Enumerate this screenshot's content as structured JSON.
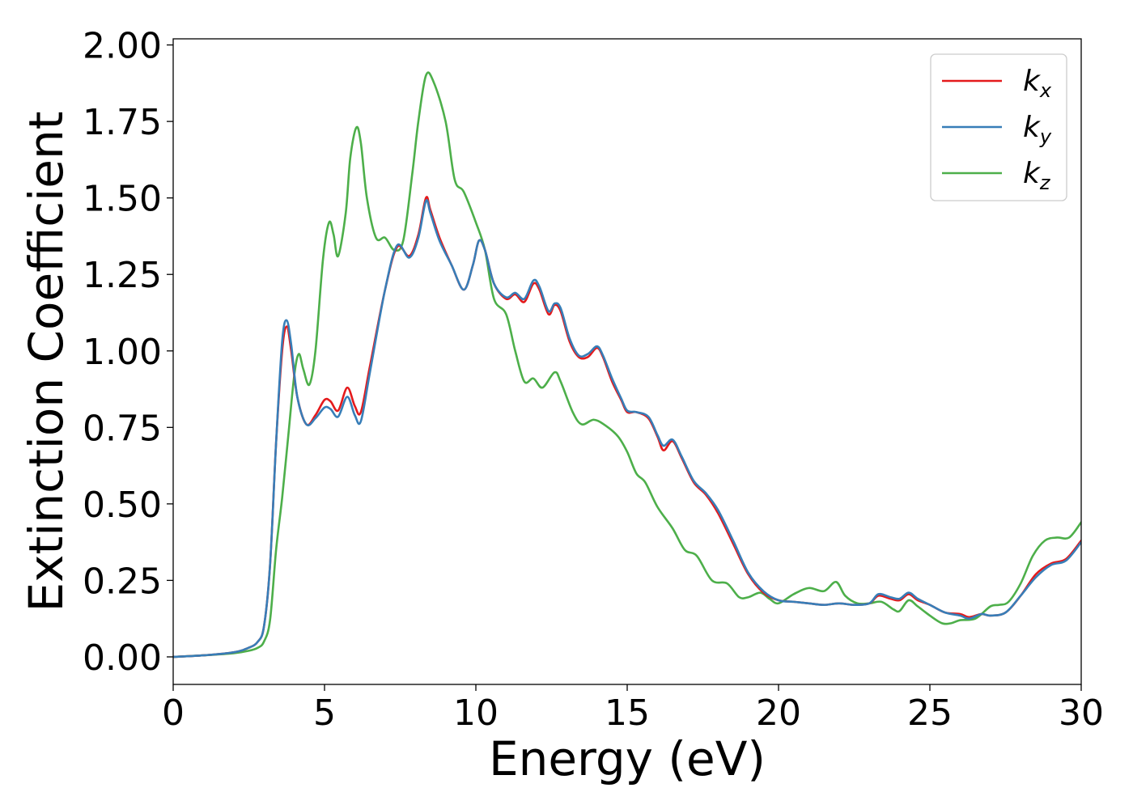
{
  "chart_data": {
    "type": "line",
    "xlabel": "Energy (eV)",
    "ylabel": "Extinction Coefficient",
    "xlim": [
      0,
      30
    ],
    "ylim": [
      -0.09,
      2.02
    ],
    "xticks": [
      0,
      5,
      10,
      15,
      20,
      25,
      30
    ],
    "xtick_labels": [
      "0",
      "5",
      "10",
      "15",
      "20",
      "25",
      "30"
    ],
    "yticks": [
      0.0,
      0.25,
      0.5,
      0.75,
      1.0,
      1.25,
      1.5,
      1.75,
      2.0
    ],
    "ytick_labels": [
      "0.00",
      "0.25",
      "0.50",
      "0.75",
      "1.00",
      "1.25",
      "1.50",
      "1.75",
      "2.00"
    ],
    "grid": false,
    "legend_position": "top-right",
    "series": [
      {
        "name": "k",
        "subscript": "x",
        "color": "#e41a1c",
        "points": [
          [
            0,
            0.0
          ],
          [
            1,
            0.005
          ],
          [
            2,
            0.015
          ],
          [
            2.5,
            0.03
          ],
          [
            2.8,
            0.05
          ],
          [
            3.0,
            0.1
          ],
          [
            3.2,
            0.3
          ],
          [
            3.4,
            0.7
          ],
          [
            3.6,
            1.0
          ],
          [
            3.75,
            1.08
          ],
          [
            3.9,
            1.0
          ],
          [
            4.1,
            0.85
          ],
          [
            4.4,
            0.76
          ],
          [
            4.7,
            0.79
          ],
          [
            5.0,
            0.84
          ],
          [
            5.2,
            0.835
          ],
          [
            5.45,
            0.805
          ],
          [
            5.75,
            0.88
          ],
          [
            6.0,
            0.82
          ],
          [
            6.2,
            0.8
          ],
          [
            6.5,
            0.95
          ],
          [
            7.0,
            1.2
          ],
          [
            7.4,
            1.34
          ],
          [
            7.8,
            1.31
          ],
          [
            8.1,
            1.38
          ],
          [
            8.35,
            1.5
          ],
          [
            8.5,
            1.46
          ],
          [
            8.8,
            1.37
          ],
          [
            9.2,
            1.28
          ],
          [
            9.6,
            1.2
          ],
          [
            9.9,
            1.28
          ],
          [
            10.1,
            1.36
          ],
          [
            10.3,
            1.33
          ],
          [
            10.6,
            1.22
          ],
          [
            11.0,
            1.17
          ],
          [
            11.3,
            1.185
          ],
          [
            11.6,
            1.16
          ],
          [
            11.9,
            1.22
          ],
          [
            12.1,
            1.2
          ],
          [
            12.4,
            1.12
          ],
          [
            12.6,
            1.15
          ],
          [
            12.8,
            1.13
          ],
          [
            13.1,
            1.03
          ],
          [
            13.4,
            0.98
          ],
          [
            13.7,
            0.98
          ],
          [
            14.0,
            1.01
          ],
          [
            14.2,
            0.98
          ],
          [
            14.5,
            0.9
          ],
          [
            14.8,
            0.84
          ],
          [
            15.0,
            0.8
          ],
          [
            15.3,
            0.8
          ],
          [
            15.7,
            0.78
          ],
          [
            16.0,
            0.72
          ],
          [
            16.2,
            0.675
          ],
          [
            16.5,
            0.705
          ],
          [
            16.8,
            0.65
          ],
          [
            17.2,
            0.57
          ],
          [
            17.6,
            0.53
          ],
          [
            18.0,
            0.47
          ],
          [
            18.5,
            0.37
          ],
          [
            19.0,
            0.27
          ],
          [
            19.5,
            0.21
          ],
          [
            20.0,
            0.185
          ],
          [
            20.5,
            0.18
          ],
          [
            21.0,
            0.175
          ],
          [
            21.5,
            0.17
          ],
          [
            22.0,
            0.175
          ],
          [
            22.5,
            0.17
          ],
          [
            23.0,
            0.175
          ],
          [
            23.3,
            0.2
          ],
          [
            23.7,
            0.19
          ],
          [
            24.0,
            0.185
          ],
          [
            24.3,
            0.205
          ],
          [
            24.6,
            0.185
          ],
          [
            25.0,
            0.17
          ],
          [
            25.5,
            0.145
          ],
          [
            26.0,
            0.14
          ],
          [
            26.3,
            0.13
          ],
          [
            26.7,
            0.14
          ],
          [
            27.0,
            0.135
          ],
          [
            27.5,
            0.145
          ],
          [
            28.0,
            0.2
          ],
          [
            28.5,
            0.27
          ],
          [
            29.0,
            0.305
          ],
          [
            29.5,
            0.32
          ],
          [
            30.0,
            0.38
          ]
        ]
      },
      {
        "name": "k",
        "subscript": "y",
        "color": "#377eb8",
        "points": [
          [
            0,
            0.0
          ],
          [
            1,
            0.005
          ],
          [
            2,
            0.015
          ],
          [
            2.5,
            0.03
          ],
          [
            2.8,
            0.05
          ],
          [
            3.0,
            0.1
          ],
          [
            3.2,
            0.3
          ],
          [
            3.4,
            0.7
          ],
          [
            3.6,
            1.03
          ],
          [
            3.75,
            1.1
          ],
          [
            3.9,
            1.02
          ],
          [
            4.1,
            0.85
          ],
          [
            4.4,
            0.76
          ],
          [
            4.7,
            0.78
          ],
          [
            5.0,
            0.815
          ],
          [
            5.2,
            0.81
          ],
          [
            5.45,
            0.785
          ],
          [
            5.75,
            0.85
          ],
          [
            6.0,
            0.79
          ],
          [
            6.2,
            0.77
          ],
          [
            6.5,
            0.93
          ],
          [
            7.0,
            1.2
          ],
          [
            7.4,
            1.345
          ],
          [
            7.8,
            1.305
          ],
          [
            8.1,
            1.37
          ],
          [
            8.35,
            1.49
          ],
          [
            8.5,
            1.45
          ],
          [
            8.8,
            1.36
          ],
          [
            9.2,
            1.28
          ],
          [
            9.6,
            1.2
          ],
          [
            9.9,
            1.28
          ],
          [
            10.1,
            1.36
          ],
          [
            10.3,
            1.33
          ],
          [
            10.6,
            1.22
          ],
          [
            11.0,
            1.175
          ],
          [
            11.3,
            1.19
          ],
          [
            11.6,
            1.17
          ],
          [
            11.9,
            1.23
          ],
          [
            12.1,
            1.21
          ],
          [
            12.4,
            1.13
          ],
          [
            12.6,
            1.155
          ],
          [
            12.8,
            1.14
          ],
          [
            13.1,
            1.04
          ],
          [
            13.4,
            0.985
          ],
          [
            13.7,
            0.99
          ],
          [
            14.0,
            1.015
          ],
          [
            14.2,
            0.985
          ],
          [
            14.5,
            0.91
          ],
          [
            14.8,
            0.845
          ],
          [
            15.0,
            0.805
          ],
          [
            15.3,
            0.8
          ],
          [
            15.7,
            0.785
          ],
          [
            16.0,
            0.725
          ],
          [
            16.2,
            0.69
          ],
          [
            16.5,
            0.71
          ],
          [
            16.8,
            0.655
          ],
          [
            17.2,
            0.575
          ],
          [
            17.6,
            0.535
          ],
          [
            18.0,
            0.48
          ],
          [
            18.5,
            0.38
          ],
          [
            19.0,
            0.275
          ],
          [
            19.5,
            0.215
          ],
          [
            20.0,
            0.185
          ],
          [
            20.5,
            0.18
          ],
          [
            21.0,
            0.175
          ],
          [
            21.5,
            0.17
          ],
          [
            22.0,
            0.175
          ],
          [
            22.5,
            0.17
          ],
          [
            23.0,
            0.175
          ],
          [
            23.3,
            0.205
          ],
          [
            23.7,
            0.195
          ],
          [
            24.0,
            0.19
          ],
          [
            24.3,
            0.21
          ],
          [
            24.6,
            0.19
          ],
          [
            25.0,
            0.17
          ],
          [
            25.5,
            0.145
          ],
          [
            26.0,
            0.135
          ],
          [
            26.3,
            0.125
          ],
          [
            26.7,
            0.14
          ],
          [
            27.0,
            0.135
          ],
          [
            27.5,
            0.145
          ],
          [
            28.0,
            0.2
          ],
          [
            28.5,
            0.26
          ],
          [
            29.0,
            0.3
          ],
          [
            29.5,
            0.315
          ],
          [
            30.0,
            0.375
          ]
        ]
      },
      {
        "name": "k",
        "subscript": "z",
        "color": "#4daf4a",
        "points": [
          [
            0,
            0.0
          ],
          [
            1,
            0.005
          ],
          [
            2,
            0.012
          ],
          [
            2.5,
            0.02
          ],
          [
            2.8,
            0.03
          ],
          [
            3.0,
            0.05
          ],
          [
            3.2,
            0.12
          ],
          [
            3.4,
            0.35
          ],
          [
            3.6,
            0.52
          ],
          [
            3.8,
            0.72
          ],
          [
            4.0,
            0.92
          ],
          [
            4.15,
            0.99
          ],
          [
            4.3,
            0.94
          ],
          [
            4.5,
            0.89
          ],
          [
            4.7,
            1.0
          ],
          [
            4.95,
            1.3
          ],
          [
            5.15,
            1.42
          ],
          [
            5.3,
            1.38
          ],
          [
            5.45,
            1.31
          ],
          [
            5.7,
            1.45
          ],
          [
            5.85,
            1.63
          ],
          [
            6.05,
            1.73
          ],
          [
            6.2,
            1.68
          ],
          [
            6.4,
            1.5
          ],
          [
            6.7,
            1.37
          ],
          [
            7.0,
            1.37
          ],
          [
            7.3,
            1.33
          ],
          [
            7.6,
            1.36
          ],
          [
            7.9,
            1.58
          ],
          [
            8.1,
            1.75
          ],
          [
            8.35,
            1.9
          ],
          [
            8.6,
            1.88
          ],
          [
            9.0,
            1.75
          ],
          [
            9.3,
            1.56
          ],
          [
            9.6,
            1.52
          ],
          [
            10.0,
            1.42
          ],
          [
            10.3,
            1.33
          ],
          [
            10.6,
            1.17
          ],
          [
            11.0,
            1.12
          ],
          [
            11.3,
            1.0
          ],
          [
            11.6,
            0.9
          ],
          [
            11.9,
            0.91
          ],
          [
            12.2,
            0.88
          ],
          [
            12.6,
            0.93
          ],
          [
            12.8,
            0.9
          ],
          [
            13.2,
            0.8
          ],
          [
            13.5,
            0.76
          ],
          [
            13.9,
            0.775
          ],
          [
            14.3,
            0.755
          ],
          [
            14.7,
            0.72
          ],
          [
            15.0,
            0.67
          ],
          [
            15.3,
            0.6
          ],
          [
            15.6,
            0.57
          ],
          [
            16.0,
            0.49
          ],
          [
            16.5,
            0.42
          ],
          [
            16.9,
            0.35
          ],
          [
            17.3,
            0.33
          ],
          [
            17.8,
            0.25
          ],
          [
            18.3,
            0.24
          ],
          [
            18.7,
            0.195
          ],
          [
            19.0,
            0.195
          ],
          [
            19.4,
            0.21
          ],
          [
            19.7,
            0.19
          ],
          [
            20.0,
            0.175
          ],
          [
            20.5,
            0.205
          ],
          [
            21.0,
            0.225
          ],
          [
            21.5,
            0.215
          ],
          [
            21.9,
            0.245
          ],
          [
            22.2,
            0.2
          ],
          [
            22.6,
            0.175
          ],
          [
            23.0,
            0.175
          ],
          [
            23.4,
            0.18
          ],
          [
            23.8,
            0.155
          ],
          [
            24.0,
            0.15
          ],
          [
            24.3,
            0.185
          ],
          [
            24.6,
            0.165
          ],
          [
            25.0,
            0.135
          ],
          [
            25.4,
            0.11
          ],
          [
            25.7,
            0.11
          ],
          [
            26.0,
            0.12
          ],
          [
            26.5,
            0.125
          ],
          [
            27.0,
            0.165
          ],
          [
            27.3,
            0.17
          ],
          [
            27.6,
            0.18
          ],
          [
            28.0,
            0.24
          ],
          [
            28.4,
            0.33
          ],
          [
            28.8,
            0.38
          ],
          [
            29.2,
            0.39
          ],
          [
            29.6,
            0.39
          ],
          [
            30.0,
            0.44
          ]
        ]
      }
    ]
  }
}
